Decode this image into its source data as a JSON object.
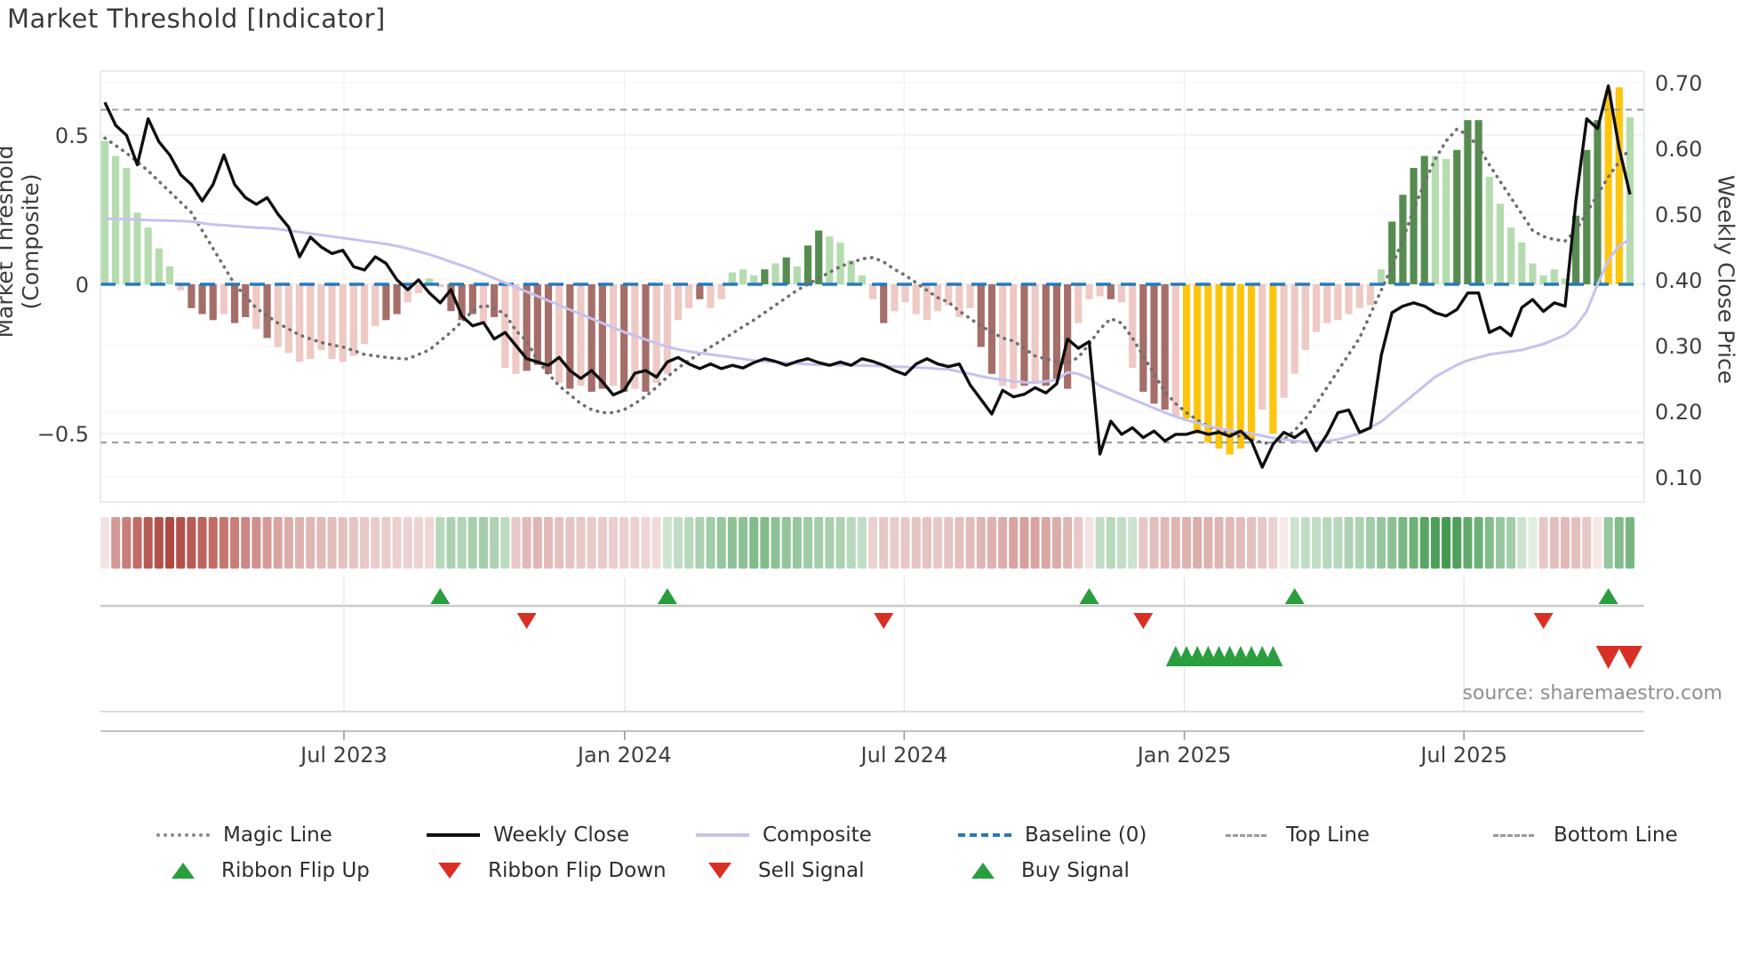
{
  "title": "Market Threshold [Indicator]",
  "source_note": "source: sharemaestro.com",
  "axes": {
    "left_label": "Market Threshold (Composite)",
    "right_label": "Weekly Close Price",
    "left_ticks": [
      {
        "label": "0.5",
        "value": 0.5
      },
      {
        "label": "0",
        "value": 0
      },
      {
        "label": "−0.5",
        "value": -0.5
      }
    ],
    "right_ticks": [
      {
        "label": "0.70",
        "value": 0.7
      },
      {
        "label": "0.60",
        "value": 0.6
      },
      {
        "label": "0.50",
        "value": 0.5
      },
      {
        "label": "0.40",
        "value": 0.4
      },
      {
        "label": "0.30",
        "value": 0.3
      },
      {
        "label": "0.20",
        "value": 0.2
      },
      {
        "label": "0.10",
        "value": 0.1
      }
    ],
    "x_ticks": [
      {
        "label": "Jul 2023",
        "idx": 22.1
      },
      {
        "label": "Jan 2024",
        "idx": 48.05
      },
      {
        "label": "Jul 2024",
        "idx": 73.9
      },
      {
        "label": "Jan 2025",
        "idx": 99.8
      },
      {
        "label": "Jul 2025",
        "idx": 125.65
      }
    ]
  },
  "legend": {
    "row1": [
      {
        "label": "Magic Line",
        "type": "magic"
      },
      {
        "label": "Weekly Close",
        "type": "weekly"
      },
      {
        "label": "Composite",
        "type": "composite"
      },
      {
        "label": "Baseline (0)",
        "type": "baseline"
      },
      {
        "label": "Top Line",
        "type": "topline"
      },
      {
        "label": "Bottom Line",
        "type": "bottomline"
      }
    ],
    "row2": [
      {
        "label": "Ribbon Flip Up",
        "type": "flip-up"
      },
      {
        "label": "Ribbon Flip Down",
        "type": "flip-down"
      },
      {
        "label": "Sell Signal",
        "type": "sell"
      },
      {
        "label": "Buy Signal",
        "type": "buy"
      }
    ]
  },
  "colors": {
    "bar_light_green": "#b5dcaf",
    "bar_dark_green": "#568c50",
    "bar_light_pink": "#efc9c4",
    "bar_dark_red": "#a56e69",
    "bar_gold": "#fdc50d",
    "weekly_close": "#0f0f0f",
    "composite": "#c7c1ef",
    "magic_line": "#6f6f6f",
    "baseline": "#2879b8",
    "top_bottom_line": "#999999",
    "signal_up": "#2a9d3f",
    "signal_down": "#d93025",
    "ribbon_red": "#b04843",
    "ribbon_green": "#2f8f3e"
  },
  "chart_data": {
    "type": "mixed",
    "x_unit": "week_index",
    "n_points": 142,
    "baseline": 0,
    "top_line": 0.585,
    "bottom_line": -0.53,
    "left_ylim": [
      -0.73,
      0.71
    ],
    "right_ylim": [
      0.065,
      0.72
    ],
    "threshold_bars": {
      "values": [
        0.48,
        0.43,
        0.39,
        0.24,
        0.19,
        0.12,
        0.06,
        -0.02,
        -0.08,
        -0.1,
        -0.12,
        -0.1,
        -0.13,
        -0.11,
        -0.15,
        -0.18,
        -0.21,
        -0.23,
        -0.26,
        -0.25,
        -0.22,
        -0.25,
        -0.26,
        -0.24,
        -0.2,
        -0.14,
        -0.12,
        -0.1,
        -0.06,
        -0.03,
        0.02,
        -0.01,
        -0.09,
        -0.12,
        -0.1,
        -0.13,
        -0.11,
        -0.28,
        -0.3,
        -0.29,
        -0.27,
        -0.3,
        -0.33,
        -0.35,
        -0.34,
        -0.36,
        -0.35,
        -0.34,
        -0.36,
        -0.35,
        -0.36,
        -0.33,
        -0.3,
        -0.12,
        -0.08,
        -0.05,
        -0.08,
        -0.05,
        0.04,
        0.05,
        0.03,
        0.05,
        0.07,
        0.09,
        0.06,
        0.13,
        0.18,
        0.16,
        0.14,
        0.08,
        0.03,
        -0.05,
        -0.13,
        -0.09,
        -0.06,
        -0.1,
        -0.12,
        -0.09,
        -0.07,
        -0.11,
        -0.08,
        -0.21,
        -0.3,
        -0.34,
        -0.35,
        -0.34,
        -0.33,
        -0.34,
        -0.32,
        -0.35,
        -0.13,
        -0.05,
        -0.04,
        -0.05,
        -0.06,
        -0.28,
        -0.36,
        -0.4,
        -0.42,
        -0.44,
        -0.45,
        -0.5,
        -0.53,
        -0.55,
        -0.57,
        -0.55,
        -0.52,
        -0.42,
        -0.5,
        -0.38,
        -0.3,
        -0.22,
        -0.16,
        -0.13,
        -0.12,
        -0.1,
        -0.08,
        -0.07,
        0.05,
        0.21,
        0.3,
        0.39,
        0.43,
        0.43,
        0.42,
        0.45,
        0.55,
        0.55,
        0.36,
        0.27,
        0.19,
        0.14,
        0.07,
        0.03,
        0.05,
        0.02,
        0.23,
        0.45,
        0.55,
        0.65,
        0.66,
        0.56
      ],
      "color_keys": [
        "g",
        "g",
        "g",
        "g",
        "g",
        "g",
        "g",
        "p",
        "r",
        "r",
        "r",
        "p",
        "r",
        "r",
        "p",
        "r",
        "p",
        "p",
        "p",
        "p",
        "p",
        "p",
        "p",
        "p",
        "p",
        "p",
        "r",
        "r",
        "p",
        "p",
        "g",
        "p",
        "r",
        "r",
        "r",
        "p",
        "r",
        "p",
        "p",
        "r",
        "r",
        "r",
        "p",
        "r",
        "p",
        "r",
        "r",
        "p",
        "r",
        "p",
        "r",
        "p",
        "p",
        "p",
        "p",
        "r",
        "p",
        "p",
        "g",
        "g",
        "g",
        "G",
        "g",
        "G",
        "g",
        "G",
        "G",
        "g",
        "g",
        "g",
        "g",
        "p",
        "r",
        "p",
        "p",
        "p",
        "p",
        "p",
        "p",
        "p",
        "p",
        "r",
        "r",
        "p",
        "p",
        "r",
        "p",
        "r",
        "r",
        "r",
        "p",
        "p",
        "p",
        "r",
        "p",
        "p",
        "r",
        "r",
        "r",
        "p",
        "y",
        "y",
        "y",
        "y",
        "y",
        "y",
        "y",
        "p",
        "y",
        "p",
        "p",
        "p",
        "p",
        "p",
        "p",
        "p",
        "p",
        "p",
        "g",
        "G",
        "G",
        "G",
        "G",
        "g",
        "g",
        "G",
        "G",
        "G",
        "g",
        "g",
        "g",
        "g",
        "g",
        "g",
        "g",
        "g",
        "G",
        "G",
        "G",
        "y",
        "y",
        "g"
      ]
    },
    "weekly_close": [
      0.67,
      0.635,
      0.62,
      0.575,
      0.645,
      0.61,
      0.59,
      0.56,
      0.545,
      0.52,
      0.545,
      0.59,
      0.545,
      0.525,
      0.515,
      0.525,
      0.5,
      0.48,
      0.435,
      0.465,
      0.45,
      0.44,
      0.445,
      0.42,
      0.415,
      0.435,
      0.425,
      0.4,
      0.385,
      0.4,
      0.38,
      0.365,
      0.385,
      0.345,
      0.33,
      0.335,
      0.31,
      0.32,
      0.3,
      0.28,
      0.275,
      0.27,
      0.282,
      0.262,
      0.25,
      0.262,
      0.245,
      0.225,
      0.232,
      0.258,
      0.262,
      0.252,
      0.275,
      0.282,
      0.272,
      0.265,
      0.272,
      0.265,
      0.27,
      0.266,
      0.274,
      0.28,
      0.276,
      0.27,
      0.276,
      0.28,
      0.274,
      0.27,
      0.275,
      0.27,
      0.28,
      0.276,
      0.27,
      0.262,
      0.256,
      0.272,
      0.28,
      0.272,
      0.268,
      0.272,
      0.24,
      0.218,
      0.196,
      0.232,
      0.222,
      0.226,
      0.236,
      0.228,
      0.242,
      0.31,
      0.296,
      0.306,
      0.135,
      0.185,
      0.165,
      0.175,
      0.16,
      0.17,
      0.155,
      0.165,
      0.165,
      0.17,
      0.165,
      0.168,
      0.162,
      0.17,
      0.155,
      0.115,
      0.15,
      0.168,
      0.16,
      0.172,
      0.14,
      0.165,
      0.198,
      0.202,
      0.168,
      0.175,
      0.285,
      0.35,
      0.36,
      0.365,
      0.36,
      0.35,
      0.345,
      0.355,
      0.38,
      0.38,
      0.32,
      0.328,
      0.315,
      0.358,
      0.37,
      0.352,
      0.365,
      0.36,
      0.52,
      0.645,
      0.63,
      0.695,
      0.6,
      0.53
    ],
    "composite": [
      0.22,
      0.219,
      0.218,
      0.217,
      0.215,
      0.214,
      0.213,
      0.212,
      0.21,
      0.205,
      0.2,
      0.198,
      0.195,
      0.192,
      0.19,
      0.188,
      0.185,
      0.18,
      0.175,
      0.17,
      0.165,
      0.16,
      0.155,
      0.15,
      0.145,
      0.14,
      0.135,
      0.128,
      0.12,
      0.11,
      0.1,
      0.088,
      0.075,
      0.063,
      0.05,
      0.035,
      0.02,
      0.005,
      -0.01,
      -0.025,
      -0.04,
      -0.055,
      -0.07,
      -0.085,
      -0.1,
      -0.115,
      -0.13,
      -0.145,
      -0.16,
      -0.173,
      -0.185,
      -0.198,
      -0.21,
      -0.218,
      -0.225,
      -0.23,
      -0.235,
      -0.24,
      -0.245,
      -0.25,
      -0.255,
      -0.258,
      -0.26,
      -0.263,
      -0.265,
      -0.268,
      -0.27,
      -0.27,
      -0.27,
      -0.271,
      -0.272,
      -0.273,
      -0.274,
      -0.276,
      -0.277,
      -0.279,
      -0.28,
      -0.283,
      -0.285,
      -0.293,
      -0.3,
      -0.308,
      -0.315,
      -0.32,
      -0.325,
      -0.328,
      -0.33,
      -0.325,
      -0.32,
      -0.295,
      -0.3,
      -0.315,
      -0.34,
      -0.355,
      -0.37,
      -0.385,
      -0.4,
      -0.415,
      -0.43,
      -0.443,
      -0.455,
      -0.465,
      -0.475,
      -0.483,
      -0.49,
      -0.495,
      -0.5,
      -0.508,
      -0.515,
      -0.52,
      -0.525,
      -0.528,
      -0.53,
      -0.525,
      -0.52,
      -0.51,
      -0.5,
      -0.48,
      -0.46,
      -0.43,
      -0.4,
      -0.37,
      -0.34,
      -0.31,
      -0.29,
      -0.27,
      -0.255,
      -0.245,
      -0.235,
      -0.23,
      -0.225,
      -0.22,
      -0.21,
      -0.2,
      -0.185,
      -0.17,
      -0.14,
      -0.09,
      0.0,
      0.08,
      0.13,
      0.15
    ],
    "magic_line": [
      0.49,
      0.465,
      0.44,
      0.41,
      0.38,
      0.345,
      0.31,
      0.275,
      0.24,
      0.18,
      0.12,
      0.06,
      0.0,
      -0.04,
      -0.08,
      -0.105,
      -0.13,
      -0.15,
      -0.17,
      -0.183,
      -0.195,
      -0.203,
      -0.21,
      -0.222,
      -0.235,
      -0.24,
      -0.245,
      -0.248,
      -0.25,
      -0.235,
      -0.22,
      -0.19,
      -0.16,
      -0.125,
      -0.09,
      -0.07,
      -0.08,
      -0.1,
      -0.155,
      -0.19,
      -0.255,
      -0.3,
      -0.34,
      -0.37,
      -0.4,
      -0.42,
      -0.43,
      -0.43,
      -0.42,
      -0.4,
      -0.375,
      -0.345,
      -0.31,
      -0.28,
      -0.255,
      -0.232,
      -0.21,
      -0.188,
      -0.165,
      -0.142,
      -0.12,
      -0.095,
      -0.07,
      -0.045,
      -0.02,
      0.0,
      0.02,
      0.04,
      0.06,
      0.072,
      0.085,
      0.09,
      0.075,
      0.05,
      0.03,
      0.005,
      -0.02,
      -0.045,
      -0.06,
      -0.09,
      -0.115,
      -0.14,
      -0.16,
      -0.18,
      -0.19,
      -0.215,
      -0.24,
      -0.25,
      -0.26,
      -0.265,
      -0.245,
      -0.2,
      -0.15,
      -0.115,
      -0.13,
      -0.18,
      -0.24,
      -0.3,
      -0.36,
      -0.4,
      -0.43,
      -0.455,
      -0.475,
      -0.49,
      -0.5,
      -0.51,
      -0.52,
      -0.53,
      -0.535,
      -0.52,
      -0.49,
      -0.45,
      -0.4,
      -0.345,
      -0.29,
      -0.235,
      -0.18,
      -0.1,
      -0.02,
      0.06,
      0.15,
      0.25,
      0.34,
      0.42,
      0.48,
      0.52,
      0.5,
      0.46,
      0.4,
      0.345,
      0.29,
      0.235,
      0.18,
      0.16,
      0.15,
      0.145,
      0.18,
      0.24,
      0.3,
      0.36,
      0.41,
      0.455
    ],
    "ribbon": [
      -0.15,
      -0.55,
      -0.7,
      -0.8,
      -0.9,
      -0.95,
      -1.0,
      -0.95,
      -0.9,
      -0.85,
      -0.8,
      -0.75,
      -0.7,
      -0.65,
      -0.6,
      -0.55,
      -0.5,
      -0.45,
      -0.42,
      -0.4,
      -0.38,
      -0.36,
      -0.34,
      -0.32,
      -0.3,
      -0.28,
      -0.28,
      -0.26,
      -0.25,
      -0.24,
      -0.22,
      0.35,
      0.4,
      0.38,
      0.42,
      0.45,
      0.4,
      0.32,
      -0.3,
      -0.38,
      -0.4,
      -0.37,
      -0.34,
      -0.32,
      -0.3,
      -0.29,
      -0.28,
      -0.27,
      -0.26,
      -0.25,
      -0.23,
      -0.2,
      0.25,
      0.3,
      0.35,
      0.4,
      0.45,
      0.5,
      0.55,
      0.55,
      0.6,
      0.6,
      0.55,
      0.52,
      0.5,
      0.46,
      0.44,
      0.42,
      0.4,
      0.35,
      0.3,
      -0.25,
      -0.3,
      -0.28,
      -0.3,
      -0.32,
      -0.33,
      -0.3,
      -0.32,
      -0.35,
      -0.37,
      -0.4,
      -0.42,
      -0.45,
      -0.5,
      -0.52,
      -0.5,
      -0.48,
      -0.45,
      -0.4,
      -0.3,
      -0.15,
      0.3,
      0.35,
      0.3,
      0.25,
      -0.3,
      -0.35,
      -0.38,
      -0.4,
      -0.42,
      -0.45,
      -0.42,
      -0.4,
      -0.38,
      -0.36,
      -0.34,
      -0.3,
      -0.25,
      -0.12,
      0.25,
      0.3,
      0.3,
      0.35,
      0.35,
      0.4,
      0.4,
      0.45,
      0.5,
      0.55,
      0.65,
      0.7,
      0.8,
      0.85,
      0.9,
      0.85,
      0.75,
      0.7,
      0.6,
      0.5,
      0.45,
      0.25,
      0.15,
      -0.3,
      -0.35,
      -0.38,
      -0.35,
      -0.3,
      -0.12,
      0.5,
      0.6,
      0.65
    ],
    "signals": {
      "ribbon_flip_up_idx": [
        31,
        52,
        91,
        110,
        139
      ],
      "ribbon_flip_down_idx": [
        39,
        72,
        96,
        133
      ],
      "buy_signal_idx": [
        99,
        100,
        101,
        102,
        103,
        104,
        105,
        106,
        107,
        108
      ],
      "sell_signal_idx": [
        139,
        141
      ]
    }
  }
}
